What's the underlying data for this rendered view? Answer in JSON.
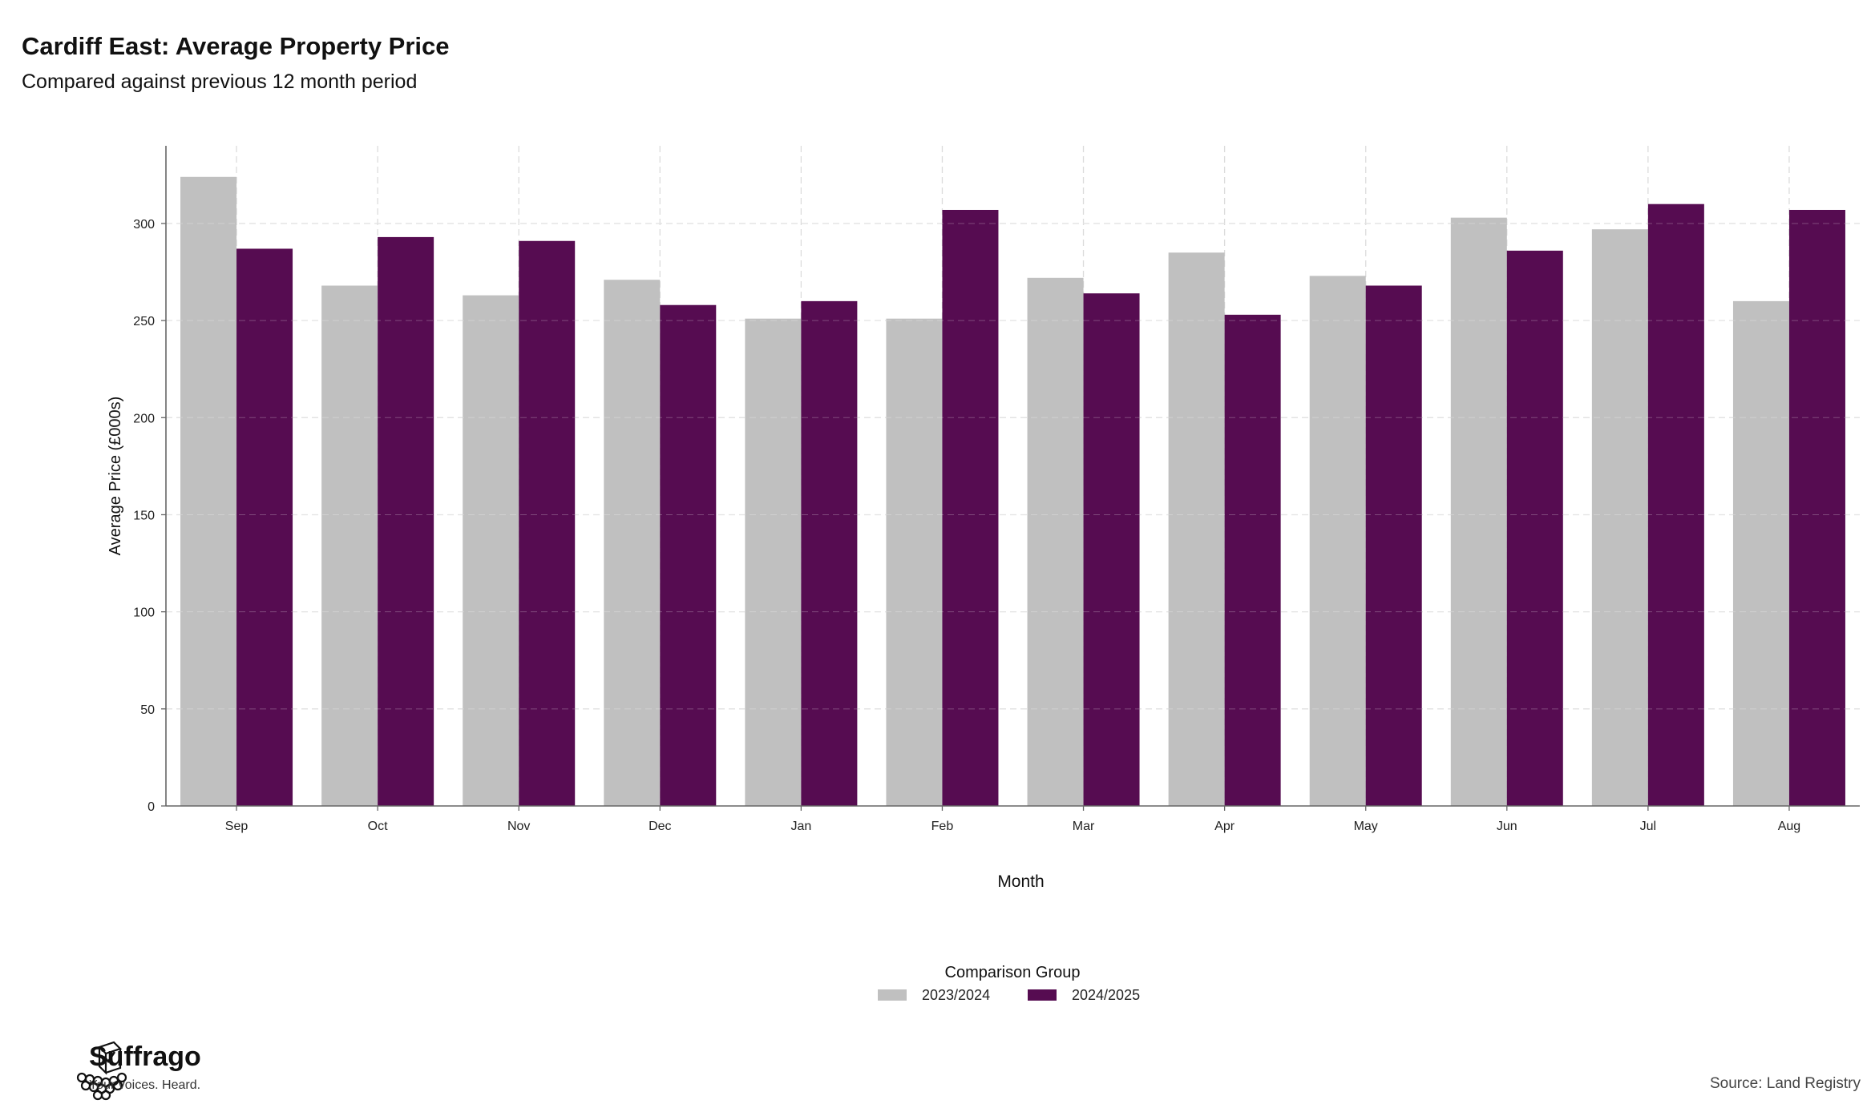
{
  "header": {
    "title": "Cardiff East: Average Property Price",
    "subtitle": "Compared against previous 12 month period"
  },
  "footer": {
    "brand_name": "Suffrago",
    "brand_tagline": "Your voices. Heard.",
    "source": "Source: Land Registry"
  },
  "colors": {
    "series_2023": "#c0c0c0",
    "series_2024": "#560c51",
    "grid": "#dcdcdc",
    "axis": "#666666"
  },
  "chart_data": {
    "type": "bar",
    "xlabel": "Month",
    "ylabel": "Average Price (£000s)",
    "ylim": [
      0,
      340
    ],
    "yticks": [
      0,
      50,
      100,
      150,
      200,
      250,
      300
    ],
    "grid": true,
    "legend_title": "Comparison Group",
    "legend_position": "bottom-center",
    "categories": [
      "Sep",
      "Oct",
      "Nov",
      "Dec",
      "Jan",
      "Feb",
      "Mar",
      "Apr",
      "May",
      "Jun",
      "Jul",
      "Aug"
    ],
    "series": [
      {
        "name": "2023/2024",
        "values": [
          324,
          268,
          263,
          271,
          251,
          251,
          272,
          285,
          273,
          303,
          297,
          260
        ]
      },
      {
        "name": "2024/2025",
        "values": [
          287,
          293,
          291,
          258,
          260,
          307,
          264,
          253,
          268,
          286,
          310,
          307
        ]
      }
    ]
  }
}
